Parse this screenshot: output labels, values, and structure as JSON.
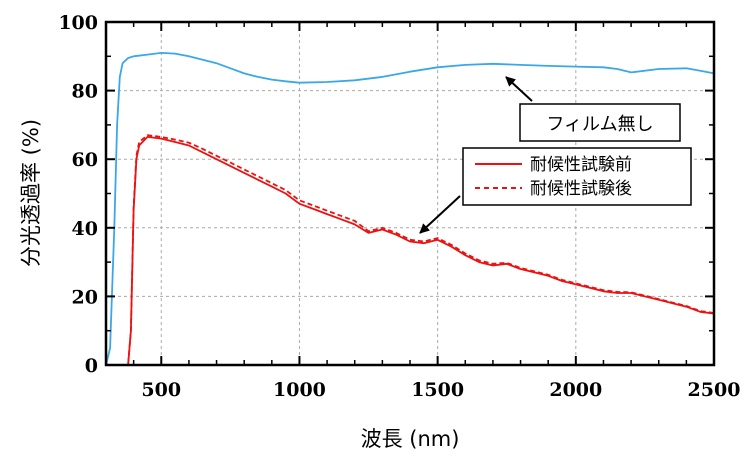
{
  "chart_data": {
    "type": "line",
    "title": "",
    "xlabel": "波長 (nm)",
    "ylabel": "分光透過率 (%)",
    "xlim": [
      300,
      2500
    ],
    "ylim": [
      0,
      100
    ],
    "xticks": [
      500,
      1000,
      1500,
      2000,
      2500
    ],
    "yticks": [
      0,
      20,
      40,
      60,
      80,
      100
    ],
    "grid": true,
    "legend_position": "upper-right",
    "annotation": "フィルム無し",
    "series": [
      {
        "name": "",
        "color": "#3aa8e8",
        "style": "solid",
        "x": [
          300,
          315,
          330,
          340,
          350,
          360,
          380,
          400,
          450,
          500,
          550,
          600,
          650,
          700,
          750,
          800,
          850,
          900,
          950,
          1000,
          1100,
          1200,
          1300,
          1400,
          1500,
          1600,
          1700,
          1800,
          1900,
          2000,
          2100,
          2150,
          2200,
          2300,
          2400,
          2450,
          2500
        ],
        "y": [
          0,
          5,
          40,
          70,
          84,
          88,
          89.5,
          90,
          90.5,
          91,
          90.8,
          90,
          89,
          88,
          86.5,
          85,
          84,
          83.2,
          82.7,
          82.3,
          82.5,
          83,
          84,
          85.5,
          86.8,
          87.5,
          87.8,
          87.5,
          87.2,
          87,
          86.8,
          86.3,
          85.3,
          86.3,
          86.5,
          85.8,
          85
        ]
      },
      {
        "name": "耐候性試験前",
        "color": "#ee1111",
        "style": "solid",
        "x": [
          300,
          360,
          380,
          390,
          400,
          410,
          420,
          450,
          500,
          550,
          600,
          650,
          700,
          750,
          800,
          850,
          900,
          950,
          1000,
          1050,
          1100,
          1150,
          1200,
          1250,
          1300,
          1350,
          1400,
          1450,
          1500,
          1550,
          1600,
          1650,
          1700,
          1750,
          1800,
          1850,
          1900,
          1950,
          2000,
          2050,
          2100,
          2150,
          2200,
          2250,
          2300,
          2350,
          2400,
          2450,
          2500
        ],
        "y": [
          0,
          0,
          0,
          10,
          45,
          60,
          64,
          66.5,
          66,
          65,
          64,
          62,
          60,
          58,
          56,
          54,
          52,
          50,
          47,
          45.5,
          44,
          42.5,
          41,
          38.5,
          39.5,
          38,
          36,
          35.5,
          36.5,
          34.5,
          32,
          30,
          29,
          29.5,
          28,
          27,
          26,
          24.5,
          23.5,
          22.5,
          21.5,
          21,
          21,
          20,
          19,
          18,
          17,
          15.5,
          15
        ]
      },
      {
        "name": "耐候性試験後",
        "color": "#ee1111",
        "style": "dashed",
        "x": [
          300,
          360,
          380,
          390,
          400,
          410,
          420,
          450,
          500,
          550,
          600,
          650,
          700,
          750,
          800,
          850,
          900,
          950,
          1000,
          1050,
          1100,
          1150,
          1200,
          1250,
          1300,
          1350,
          1400,
          1450,
          1500,
          1550,
          1600,
          1650,
          1700,
          1750,
          1800,
          1850,
          1900,
          1950,
          2000,
          2050,
          2100,
          2150,
          2200,
          2250,
          2300,
          2350,
          2400,
          2450,
          2500
        ],
        "y": [
          0,
          0,
          0,
          10,
          46,
          61,
          65,
          67,
          66.5,
          65.7,
          64.8,
          63,
          61,
          59,
          57,
          55,
          53,
          51,
          48,
          46.5,
          45,
          43.5,
          42,
          39,
          40,
          38.5,
          36.5,
          36,
          37,
          35,
          32.5,
          30.5,
          29.5,
          29.8,
          28.3,
          27.3,
          26.3,
          24.8,
          23.8,
          22.8,
          21.8,
          21.3,
          21.2,
          20.2,
          19.2,
          18.2,
          17.2,
          15.7,
          15.2
        ]
      }
    ]
  }
}
